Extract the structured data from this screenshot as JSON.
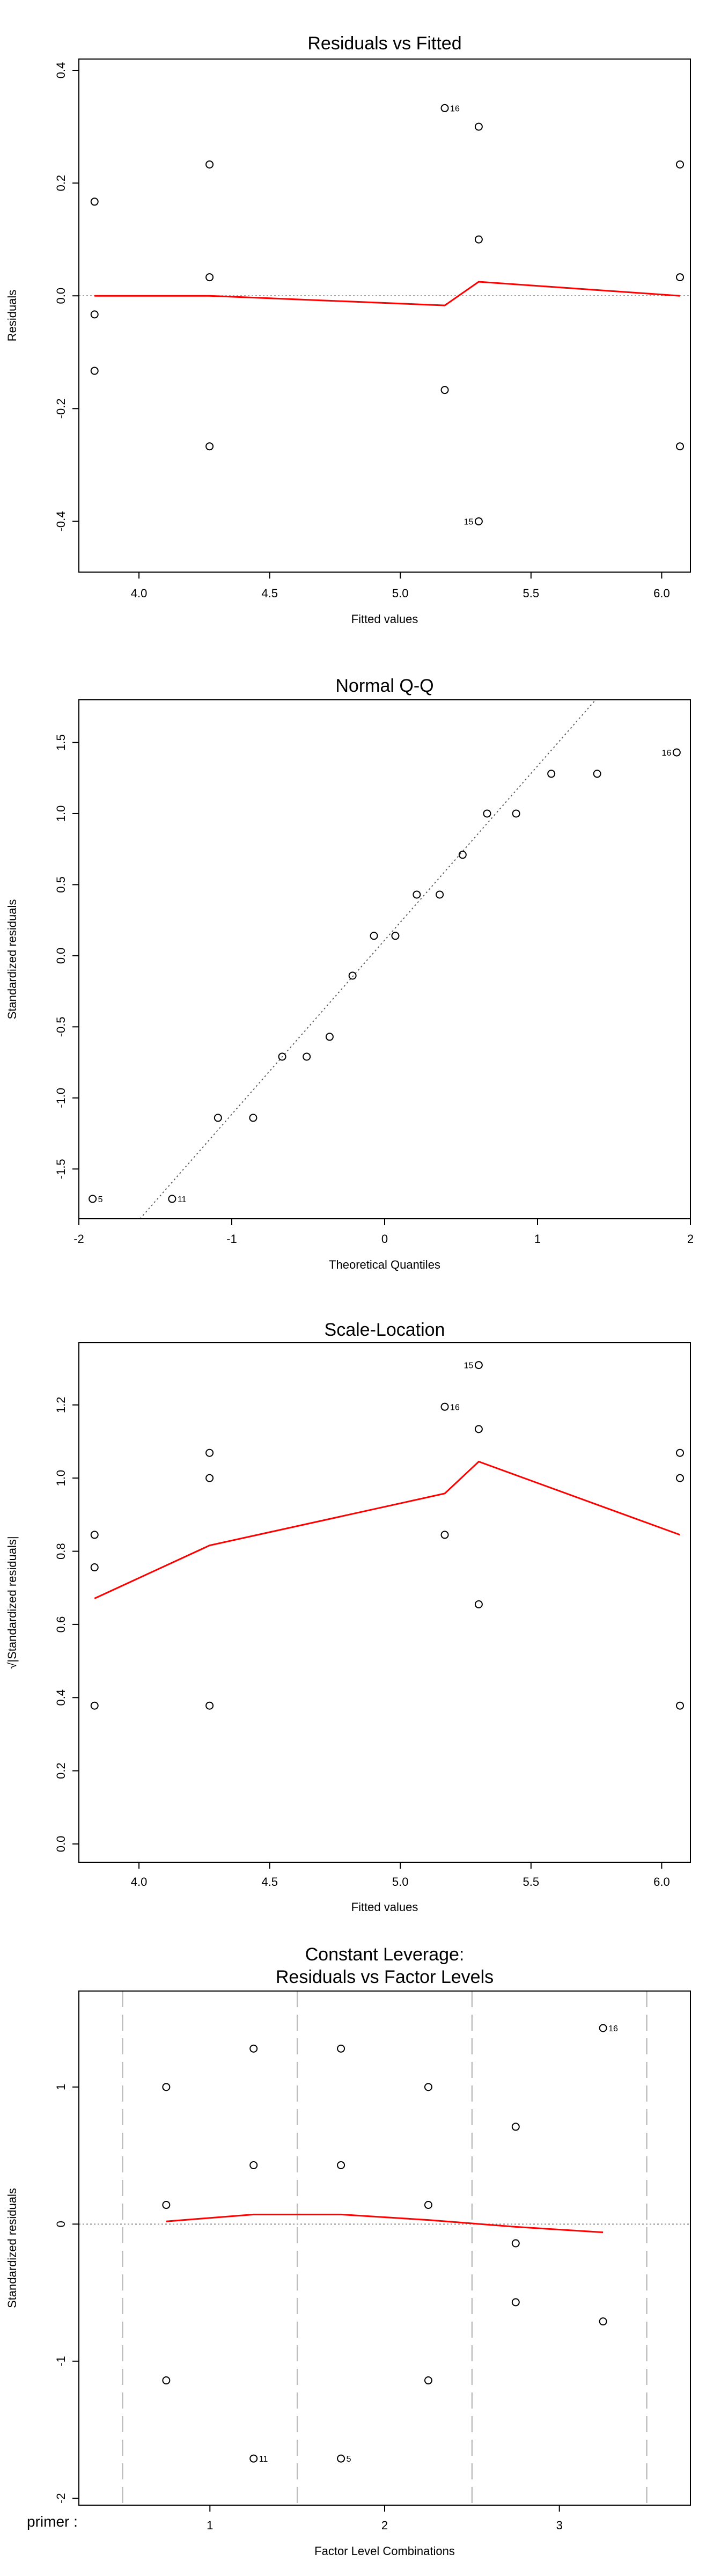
{
  "chart_data": [
    {
      "type": "scatter",
      "title": "Residuals vs Fitted",
      "xlabel": "Fitted values",
      "ylabel": "Residuals",
      "xlim": [
        3.77,
        6.11
      ],
      "ylim": [
        -0.49,
        0.42
      ],
      "xticks": [
        4.0,
        4.5,
        5.0,
        5.5,
        6.0
      ],
      "xtick_labels": [
        "4.0",
        "4.5",
        "5.0",
        "5.5",
        "6.0"
      ],
      "yticks": [
        -0.4,
        -0.2,
        0.0,
        0.2,
        0.4
      ],
      "ytick_labels": [
        "-0.4",
        "-0.2",
        "0.0",
        "0.2",
        "0.4"
      ],
      "ref_hline": 0,
      "points": [
        {
          "x": 3.83,
          "y": 0.167,
          "label": ""
        },
        {
          "x": 3.83,
          "y": -0.033,
          "label": ""
        },
        {
          "x": 3.83,
          "y": -0.133,
          "label": ""
        },
        {
          "x": 4.27,
          "y": 0.233,
          "label": ""
        },
        {
          "x": 4.27,
          "y": 0.033,
          "label": ""
        },
        {
          "x": 4.27,
          "y": -0.267,
          "label": ""
        },
        {
          "x": 5.17,
          "y": 0.333,
          "label": "16"
        },
        {
          "x": 5.17,
          "y": -0.167,
          "label": ""
        },
        {
          "x": 5.3,
          "y": 0.3,
          "label": ""
        },
        {
          "x": 5.3,
          "y": 0.1,
          "label": ""
        },
        {
          "x": 5.3,
          "y": -0.4,
          "label": "15"
        },
        {
          "x": 6.07,
          "y": 0.233,
          "label": ""
        },
        {
          "x": 6.07,
          "y": 0.033,
          "label": ""
        },
        {
          "x": 6.07,
          "y": -0.267,
          "label": ""
        }
      ],
      "smooth": {
        "x": [
          3.83,
          4.27,
          5.17,
          5.3,
          6.07
        ],
        "y": [
          0.0,
          0.0,
          -0.017,
          0.025,
          0.0
        ]
      }
    },
    {
      "type": "scatter",
      "title": "Normal Q-Q",
      "xlabel": "Theoretical Quantiles",
      "ylabel": "Standardized residuals",
      "xlim": [
        -2.0,
        2.0
      ],
      "ylim": [
        -1.85,
        1.8
      ],
      "xticks": [
        -2,
        -1,
        0,
        1,
        2
      ],
      "xtick_labels": [
        "-2",
        "-1",
        "0",
        "1",
        "2"
      ],
      "yticks": [
        -1.5,
        -1.0,
        -0.5,
        0.0,
        0.5,
        1.0,
        1.5
      ],
      "ytick_labels": [
        "-1.5",
        "-1.0",
        "-0.5",
        "0.0",
        "0.5",
        "1.0",
        "1.5"
      ],
      "qq_line": {
        "x": [
          -1.6,
          1.38
        ],
        "y": [
          -1.85,
          1.8
        ]
      },
      "points": [
        {
          "x": -1.91,
          "y": -1.71,
          "label": "5"
        },
        {
          "x": -1.39,
          "y": -1.71,
          "label": "11"
        },
        {
          "x": -1.09,
          "y": -1.14,
          "label": ""
        },
        {
          "x": -0.86,
          "y": -1.14,
          "label": ""
        },
        {
          "x": -0.67,
          "y": -0.71,
          "label": ""
        },
        {
          "x": -0.51,
          "y": -0.71,
          "label": ""
        },
        {
          "x": -0.36,
          "y": -0.57,
          "label": ""
        },
        {
          "x": -0.21,
          "y": -0.14,
          "label": ""
        },
        {
          "x": -0.07,
          "y": 0.14,
          "label": ""
        },
        {
          "x": 0.07,
          "y": 0.14,
          "label": ""
        },
        {
          "x": 0.21,
          "y": 0.43,
          "label": ""
        },
        {
          "x": 0.36,
          "y": 0.43,
          "label": ""
        },
        {
          "x": 0.51,
          "y": 0.71,
          "label": ""
        },
        {
          "x": 0.67,
          "y": 1.0,
          "label": ""
        },
        {
          "x": 0.86,
          "y": 1.0,
          "label": ""
        },
        {
          "x": 1.09,
          "y": 1.28,
          "label": ""
        },
        {
          "x": 1.39,
          "y": 1.28,
          "label": ""
        },
        {
          "x": 1.91,
          "y": 1.43,
          "label": "16"
        }
      ]
    },
    {
      "type": "scatter",
      "title": "Scale-Location",
      "xlabel": "Fitted values",
      "ylabel": "√|Standardized residuals|",
      "xlim": [
        3.77,
        6.11
      ],
      "ylim": [
        -0.05,
        1.37
      ],
      "xticks": [
        4.0,
        4.5,
        5.0,
        5.5,
        6.0
      ],
      "xtick_labels": [
        "4.0",
        "4.5",
        "5.0",
        "5.5",
        "6.0"
      ],
      "yticks": [
        0.0,
        0.2,
        0.4,
        0.6,
        0.8,
        1.0,
        1.2
      ],
      "ytick_labels": [
        "0.0",
        "0.2",
        "0.4",
        "0.6",
        "0.8",
        "1.0",
        "1.2"
      ],
      "points": [
        {
          "x": 3.83,
          "y": 0.845,
          "label": ""
        },
        {
          "x": 3.83,
          "y": 0.756,
          "label": ""
        },
        {
          "x": 3.83,
          "y": 0.378,
          "label": ""
        },
        {
          "x": 4.27,
          "y": 1.069,
          "label": ""
        },
        {
          "x": 4.27,
          "y": 1.0,
          "label": ""
        },
        {
          "x": 4.27,
          "y": 0.378,
          "label": ""
        },
        {
          "x": 5.17,
          "y": 1.195,
          "label": "16"
        },
        {
          "x": 5.17,
          "y": 0.845,
          "label": ""
        },
        {
          "x": 5.3,
          "y": 1.309,
          "label": "15"
        },
        {
          "x": 5.3,
          "y": 1.134,
          "label": ""
        },
        {
          "x": 5.3,
          "y": 0.655,
          "label": ""
        },
        {
          "x": 6.07,
          "y": 1.069,
          "label": ""
        },
        {
          "x": 6.07,
          "y": 1.0,
          "label": ""
        },
        {
          "x": 6.07,
          "y": 0.378,
          "label": ""
        }
      ],
      "smooth": {
        "x": [
          3.83,
          4.27,
          5.17,
          5.3,
          6.07
        ],
        "y": [
          0.671,
          0.816,
          0.958,
          1.045,
          0.845
        ]
      }
    },
    {
      "type": "scatter",
      "title": "Constant Leverage:",
      "subtitle": "Residuals vs Factor Levels",
      "xlabel": "Factor Level Combinations",
      "ylabel": "Standardized residuals",
      "factor_label": "primer :",
      "xlim": [
        0.25,
        3.75
      ],
      "ylim": [
        -2.05,
        1.7
      ],
      "xticks": [
        1,
        2,
        3
      ],
      "xtick_labels": [
        "1",
        "2",
        "3"
      ],
      "yticks": [
        -2,
        -1,
        0,
        1
      ],
      "ytick_labels": [
        "-2",
        "-1",
        "0",
        "1"
      ],
      "ref_hline": 0,
      "group_lines": [
        0.5,
        1.5,
        2.5,
        3.5
      ],
      "points": [
        {
          "x": 0.75,
          "y": 1.0,
          "label": ""
        },
        {
          "x": 0.75,
          "y": 0.14,
          "label": ""
        },
        {
          "x": 0.75,
          "y": -1.14,
          "label": ""
        },
        {
          "x": 1.25,
          "y": 1.28,
          "label": ""
        },
        {
          "x": 1.25,
          "y": 0.43,
          "label": ""
        },
        {
          "x": 1.25,
          "y": -1.71,
          "label": "11"
        },
        {
          "x": 1.75,
          "y": 1.28,
          "label": ""
        },
        {
          "x": 1.75,
          "y": 0.43,
          "label": ""
        },
        {
          "x": 1.75,
          "y": -1.71,
          "label": "5"
        },
        {
          "x": 2.25,
          "y": 1.0,
          "label": ""
        },
        {
          "x": 2.25,
          "y": 0.14,
          "label": ""
        },
        {
          "x": 2.25,
          "y": -1.14,
          "label": ""
        },
        {
          "x": 2.75,
          "y": 0.71,
          "label": ""
        },
        {
          "x": 2.75,
          "y": -0.14,
          "label": ""
        },
        {
          "x": 2.75,
          "y": -0.57,
          "label": ""
        },
        {
          "x": 3.25,
          "y": 1.43,
          "label": "16"
        },
        {
          "x": 3.25,
          "y": -0.71,
          "label": ""
        }
      ],
      "smooth": {
        "x": [
          0.75,
          1.25,
          1.75,
          2.25,
          2.75,
          3.25
        ],
        "y": [
          0.02,
          0.07,
          0.07,
          0.03,
          -0.02,
          -0.06
        ]
      }
    }
  ]
}
